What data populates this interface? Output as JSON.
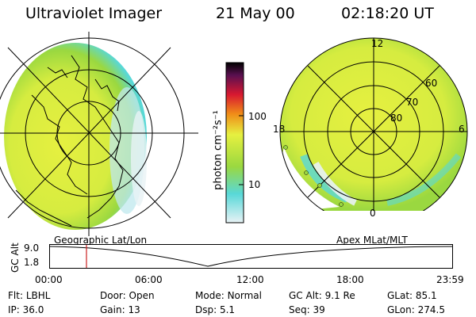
{
  "header": {
    "instrument": "Ultraviolet Imager",
    "date": "21 May 00",
    "time": "02:18:20 UT"
  },
  "colorbar": {
    "unit_label": "photon cm⁻²s⁻¹",
    "ticks": [
      "100",
      "10"
    ],
    "colors": [
      "#e8f2f5",
      "#58d8d8",
      "#9ad840",
      "#e6f040",
      "#f08c18",
      "#d81830",
      "#5a1050",
      "#000000"
    ]
  },
  "left_panel": {
    "caption": "Geographic Lat/Lon"
  },
  "right_panel": {
    "caption": "Apex MLat/MLT",
    "mlt_labels": {
      "top": "12",
      "left": "18",
      "right": "6",
      "bottom": "0"
    },
    "lat_labels": [
      "60",
      "70",
      "80"
    ]
  },
  "timeline": {
    "axis_label": "GC Alt",
    "y_ticks": [
      "9.0",
      "1.8"
    ],
    "x_ticks": [
      "00:00",
      "06:00",
      "12:00",
      "18:00",
      "23:59"
    ],
    "marker_color": "#cc2020"
  },
  "info": {
    "row1": [
      {
        "key": "Flt:",
        "value": "LBHL"
      },
      {
        "key": "Door:",
        "value": "Open"
      },
      {
        "key": "Mode:",
        "value": "Normal"
      },
      {
        "key": "GC Alt:",
        "value": "9.1 Re"
      },
      {
        "key": "GLat:",
        "value": "85.1"
      }
    ],
    "row2": [
      {
        "key": "IP:",
        "value": "36.0"
      },
      {
        "key": "Gain:",
        "value": "13"
      },
      {
        "key": "Dsp:",
        "value": "5.1"
      },
      {
        "key": "Seq:",
        "value": "39"
      },
      {
        "key": "GLon:",
        "value": "274.5"
      }
    ]
  }
}
